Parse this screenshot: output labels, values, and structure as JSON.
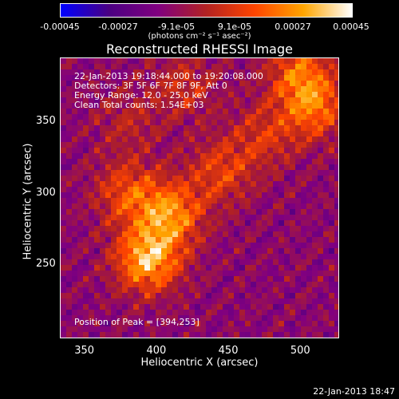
{
  "chart_data": {
    "type": "heatmap",
    "title": "Reconstructed RHESSI Image",
    "xlabel": "Heliocentric X (arcsec)",
    "ylabel": "Heliocentric Y (arcsec)",
    "xlim": [
      333,
      527
    ],
    "ylim": [
      198,
      395
    ],
    "xticks": [
      "350",
      "400",
      "450",
      "500"
    ],
    "yticks": [
      "250",
      "300",
      "350"
    ],
    "colorbar": {
      "range": [
        -0.00045,
        0.00045
      ],
      "tick_labels": [
        "-0.00045",
        "-0.00027",
        "-9.1e-05",
        "9.1e-05",
        "0.00027",
        "0.00045"
      ],
      "unit_label": "(photons cm⁻² s⁻¹ asec⁻²)",
      "colors": [
        "#0000ff",
        "#4b0082",
        "#800080",
        "#b22222",
        "#ff4500",
        "#ffa500",
        "#ffffff"
      ]
    },
    "annotations": [
      "22-Jan-2013 19:18:44.000 to 19:20:08.000",
      "Detectors: 3F 5F 6F 7F 8F 9F, Att 0",
      "Energy Range: 12.0 - 25.0 keV",
      "Clean    Total counts: 1.54E+03"
    ],
    "peak_label": "Position of Peak = [394,253]",
    "peak": [
      394,
      253
    ],
    "emission_regions": [
      {
        "x": 394,
        "y": 253,
        "value": 0.00045
      },
      {
        "x": 410,
        "y": 285,
        "value": 0.00036
      },
      {
        "x": 380,
        "y": 300,
        "value": 0.00025
      },
      {
        "x": 445,
        "y": 315,
        "value": 0.00022
      },
      {
        "x": 510,
        "y": 360,
        "value": 0.0003
      },
      {
        "x": 500,
        "y": 385,
        "value": 0.00028
      },
      {
        "x": 475,
        "y": 340,
        "value": 0.00018
      },
      {
        "x": 420,
        "y": 375,
        "value": 0.00016
      },
      {
        "x": 380,
        "y": 350,
        "value": 0.00012
      }
    ]
  },
  "footer_date": "22-Jan-2013 18:47"
}
